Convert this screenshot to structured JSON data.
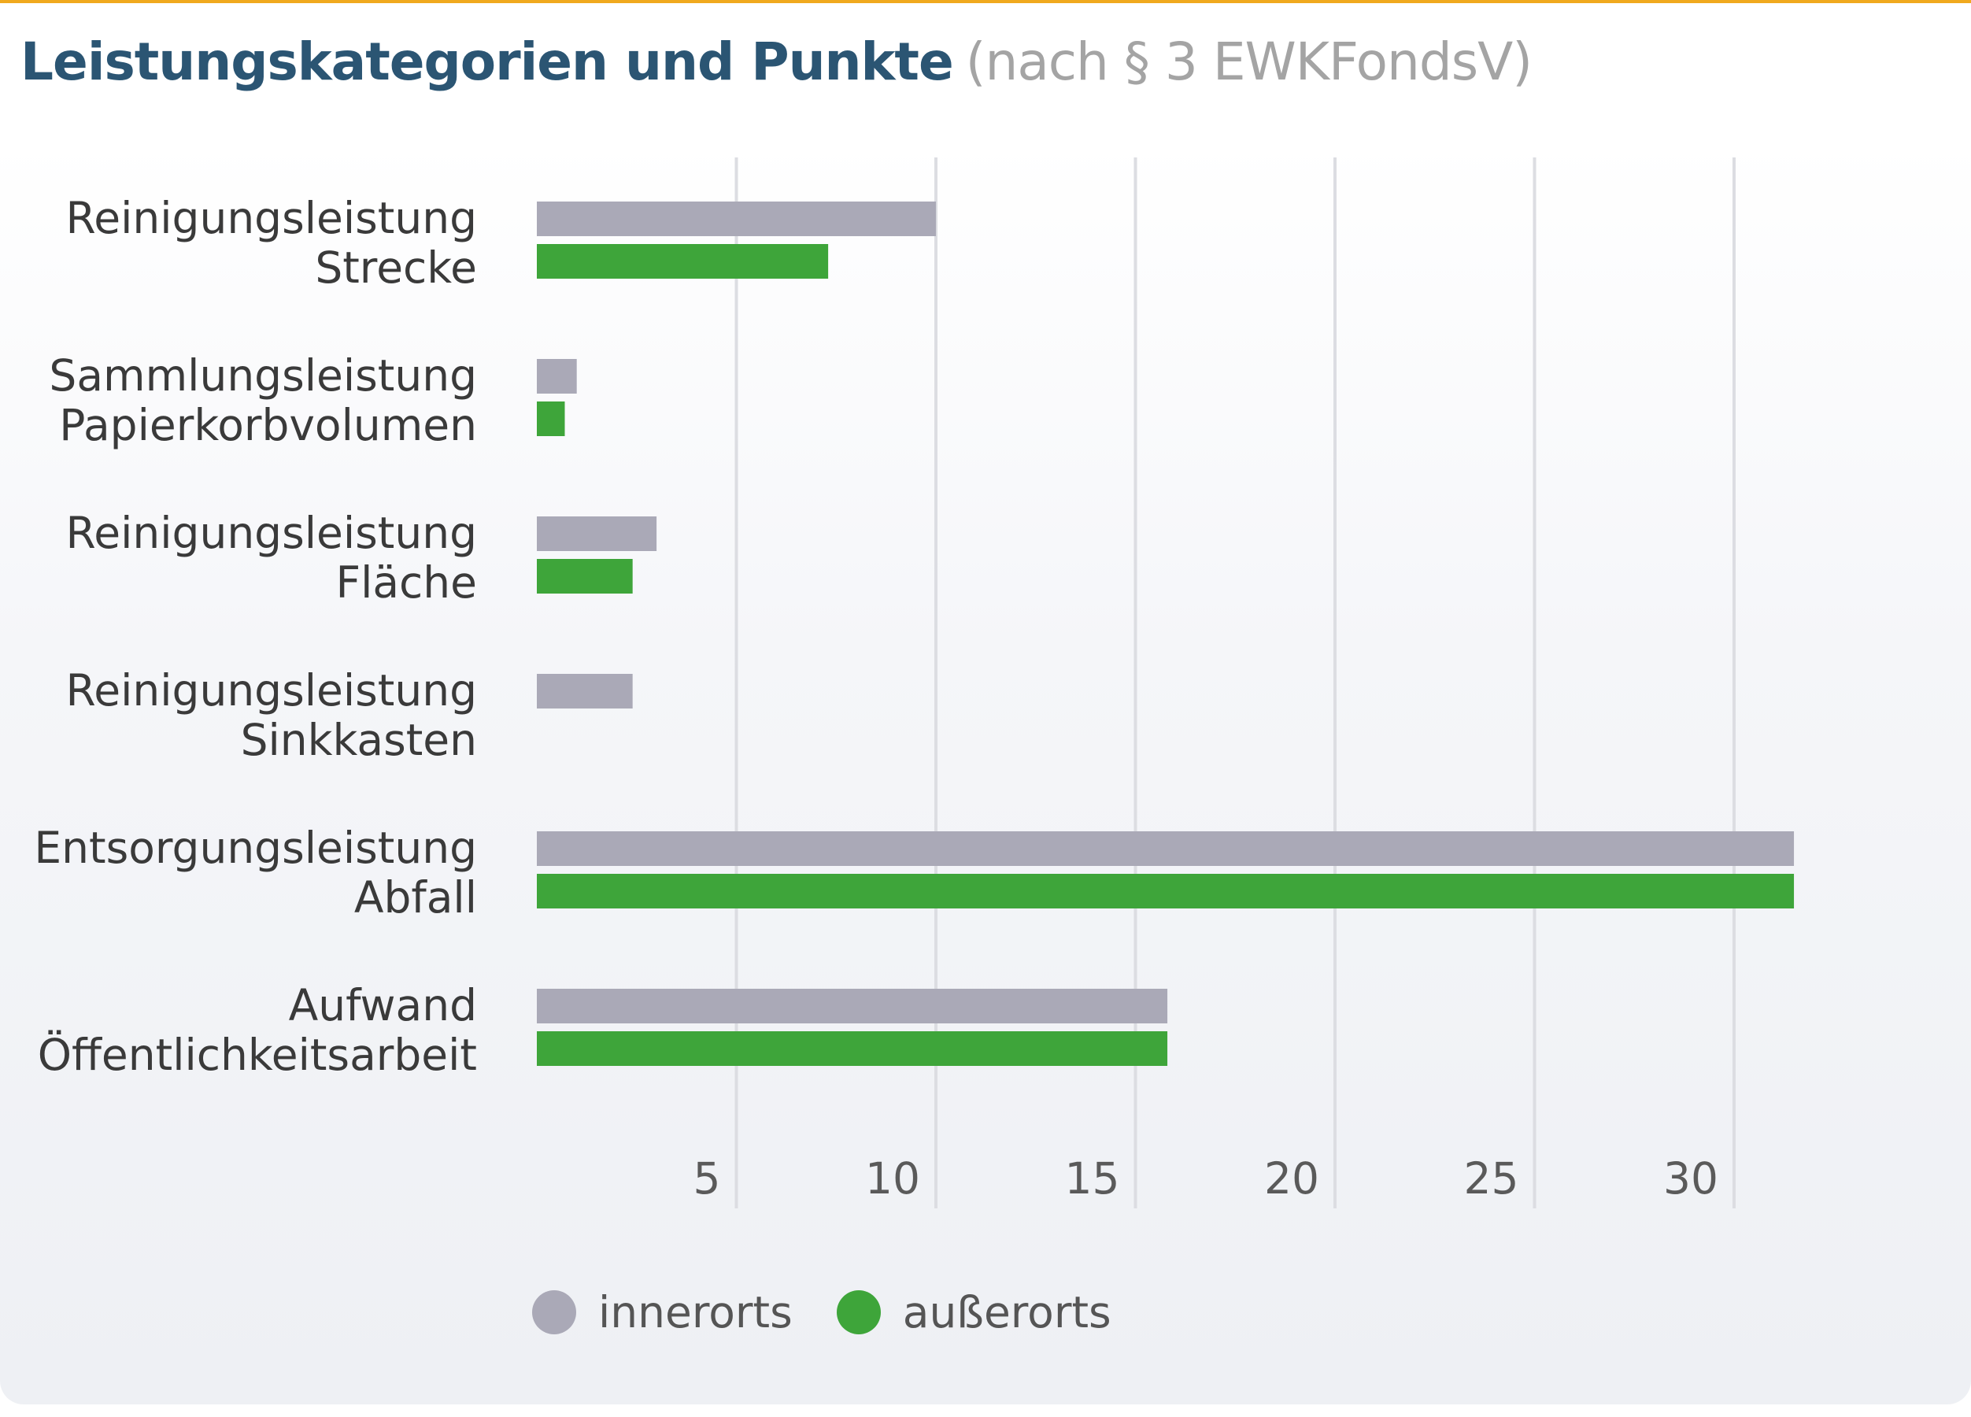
{
  "title": "Leistungskategorien und Punkte",
  "subtitle": "(nach § 3 EWKFondsV)",
  "colors": {
    "innerorts": "#aaa9b7",
    "ausserorts": "#3ea53a",
    "accent": "#f0a91e",
    "title": "#2b5573"
  },
  "legend": {
    "innerorts": "innerorts",
    "ausserorts": "außerorts"
  },
  "chart_data": {
    "type": "bar",
    "orientation": "horizontal",
    "title": "Leistungskategorien und Punkte (nach § 3 EWKFondsV)",
    "xlabel": "",
    "ylabel": "",
    "xlim": [
      0,
      34
    ],
    "xticks": [
      5,
      10,
      15,
      20,
      25,
      30
    ],
    "grid": true,
    "legend_position": "bottom-left",
    "categories": [
      [
        "Reinigungsleistung",
        "Strecke"
      ],
      [
        "Sammlungsleistung",
        "Papierkorbvolumen"
      ],
      [
        "Reinigungsleistung",
        "Fläche"
      ],
      [
        "Reinigungsleistung",
        "Sinkkasten"
      ],
      [
        "Entsorgungsleistung",
        "Abfall"
      ],
      [
        "Aufwand",
        "Öffentlichkeitsarbeit"
      ]
    ],
    "series": [
      {
        "name": "innerorts",
        "values": [
          10,
          1,
          3,
          2.4,
          31.5,
          15.8
        ]
      },
      {
        "name": "außerorts",
        "values": [
          7.3,
          0.7,
          2.4,
          null,
          31.5,
          15.8
        ]
      }
    ]
  }
}
